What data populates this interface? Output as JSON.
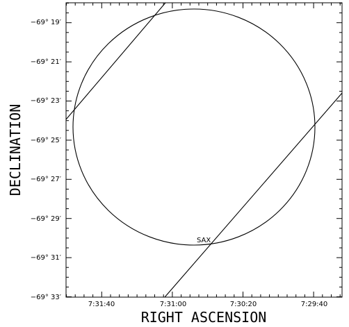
{
  "chart_data": {
    "type": "diagram",
    "xlabel": "RIGHT ASCENSION",
    "ylabel": "DECLINATION",
    "x_ticks": [
      "7:31:40",
      "7:31:00",
      "7:30:20",
      "7:29:40"
    ],
    "y_ticks": [
      "−69° 19′",
      "−69° 21′",
      "−69° 23′",
      "−69° 25′",
      "−69° 27′",
      "−69° 29′",
      "−69° 31′",
      "−69° 33′"
    ],
    "circle_label": "SAX"
  }
}
